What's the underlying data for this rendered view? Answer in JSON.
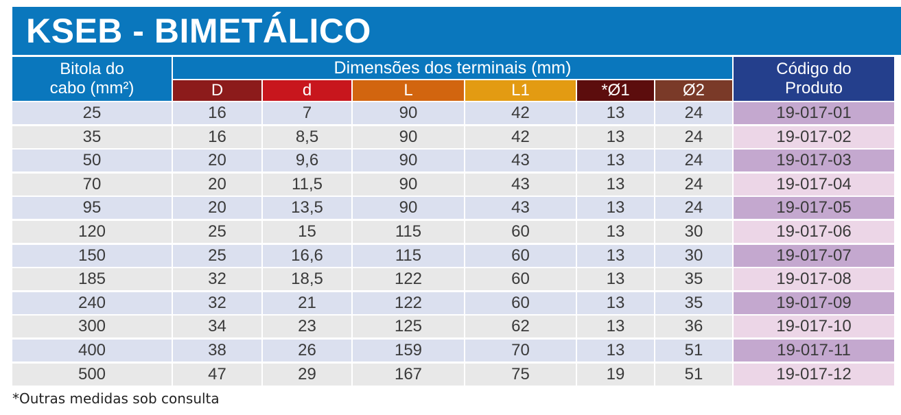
{
  "title": "KSEB - BIMETÁLICO",
  "headers": {
    "bitola_line1": "Bitola do",
    "bitola_line2": "cabo (mm²)",
    "dimensoes": "Dimensões dos terminais (mm)",
    "codigo_line1": "Código do",
    "codigo_line2": "Produto"
  },
  "subheaders": [
    "D",
    "d",
    "L",
    "L1",
    "*Ø1",
    "Ø2"
  ],
  "subheader_colors": [
    "#8c1b1b",
    "#c8161d",
    "#d2650f",
    "#e39b12",
    "#5c0d0d",
    "#7a3a28"
  ],
  "row_colors": {
    "odd": "#dbe0ef",
    "even": "#e8e8e8",
    "code_odd": "#c4a8cf",
    "code_even": "#ecd6e7"
  },
  "rows": [
    [
      "25",
      "16",
      "7",
      "90",
      "42",
      "13",
      "24",
      "19-017-01"
    ],
    [
      "35",
      "16",
      "8,5",
      "90",
      "42",
      "13",
      "24",
      "19-017-02"
    ],
    [
      "50",
      "20",
      "9,6",
      "90",
      "43",
      "13",
      "24",
      "19-017-03"
    ],
    [
      "70",
      "20",
      "11,5",
      "90",
      "43",
      "13",
      "24",
      "19-017-04"
    ],
    [
      "95",
      "20",
      "13,5",
      "90",
      "43",
      "13",
      "24",
      "19-017-05"
    ],
    [
      "120",
      "25",
      "15",
      "115",
      "60",
      "13",
      "30",
      "19-017-06"
    ],
    [
      "150",
      "25",
      "16,6",
      "115",
      "60",
      "13",
      "30",
      "19-017-07"
    ],
    [
      "185",
      "32",
      "18,5",
      "122",
      "60",
      "13",
      "35",
      "19-017-08"
    ],
    [
      "240",
      "32",
      "21",
      "122",
      "60",
      "13",
      "35",
      "19-017-09"
    ],
    [
      "300",
      "34",
      "23",
      "125",
      "62",
      "13",
      "36",
      "19-017-10"
    ],
    [
      "400",
      "38",
      "26",
      "159",
      "70",
      "13",
      "51",
      "19-017-11"
    ],
    [
      "500",
      "47",
      "29",
      "167",
      "75",
      "19",
      "51",
      "19-017-12"
    ]
  ],
  "footnote": "*Outras medidas sob consulta"
}
